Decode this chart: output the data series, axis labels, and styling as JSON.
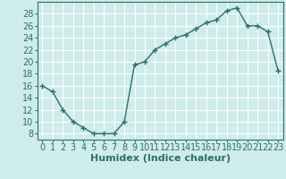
{
  "x": [
    0,
    1,
    2,
    3,
    4,
    5,
    6,
    7,
    8,
    9,
    10,
    11,
    12,
    13,
    14,
    15,
    16,
    17,
    18,
    19,
    20,
    21,
    22,
    23
  ],
  "y": [
    16,
    15,
    12,
    10,
    9,
    8,
    8,
    8,
    10,
    19.5,
    20,
    22,
    23,
    24,
    24.5,
    25.5,
    26.5,
    27,
    28.5,
    29,
    26,
    26,
    25,
    18.5
  ],
  "line_color": "#2d6e6e",
  "marker": "+",
  "marker_size": 4,
  "marker_linewidth": 1.0,
  "line_width": 1.0,
  "xlabel": "Humidex (Indice chaleur)",
  "xlim": [
    -0.5,
    23.5
  ],
  "ylim": [
    7,
    30
  ],
  "yticks": [
    8,
    10,
    12,
    14,
    16,
    18,
    20,
    22,
    24,
    26,
    28
  ],
  "xticks": [
    0,
    1,
    2,
    3,
    4,
    5,
    6,
    7,
    8,
    9,
    10,
    11,
    12,
    13,
    14,
    15,
    16,
    17,
    18,
    19,
    20,
    21,
    22,
    23
  ],
  "background_color": "#ceecea",
  "grid_color": "#ffffff",
  "tick_fontsize": 7,
  "label_fontsize": 8
}
